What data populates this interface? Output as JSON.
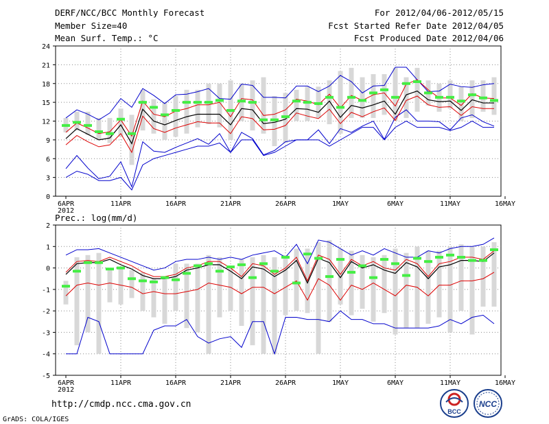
{
  "header": {
    "title_line1": "DERF/NCC/BCC Monthly Forecast",
    "title_line2": "Member Size=40",
    "title_line3": "Mean Surf. Temp.: °C",
    "right_line1": "For 2012/04/06-2012/05/15",
    "right_line2": "Fcst Started Refer Date 2012/04/05",
    "right_line3": "Fcst Produced Date 2012/04/06"
  },
  "footer": {
    "url": "http://cmdp.ncc.cma.gov.cn",
    "credit": "GrADS: COLA/IGES"
  },
  "logos": {
    "bcc": "BCC",
    "ncc": "NCC"
  },
  "colors": {
    "envelope": "#0000cc",
    "percentile": "#dd0000",
    "median": "#000000",
    "box": "#d8d8d8",
    "obs": "#44ee44",
    "grid": "#888888"
  },
  "chart_data": [
    {
      "type": "line",
      "title": "Mean Surf. Temp.: °C",
      "x_tick_labels": [
        "6APR",
        "11APR",
        "16APR",
        "21APR",
        "26APR",
        "1MAY",
        "6MAY",
        "11MAY",
        "16MAY"
      ],
      "x_year_label": "2012",
      "x_range_days": [
        0,
        39
      ],
      "ylim": [
        0,
        24
      ],
      "ytick_labels": [
        "0",
        "3",
        "6",
        "9",
        "12",
        "15",
        "18",
        "21",
        "24"
      ],
      "box_low": [
        10.2,
        10.5,
        9.8,
        9.0,
        8.5,
        9.5,
        5.0,
        10.5,
        10.0,
        9.0,
        9.5,
        10.0,
        11.0,
        11.5,
        11.0,
        9.0,
        12.0,
        10.5,
        10.0,
        8.0,
        8.5,
        12.0,
        12.0,
        12.5,
        11.5,
        10.0,
        12.5,
        12.5,
        12.5,
        13.0,
        12.0,
        12.5,
        13.5,
        14.5,
        13.5,
        14.0,
        12.0,
        12.5,
        13.5,
        13.0
      ],
      "box_high": [
        12.5,
        13.5,
        13.5,
        12.5,
        12.5,
        14.0,
        13.0,
        17.0,
        15.5,
        15.0,
        16.0,
        17.0,
        17.0,
        18.0,
        18.0,
        18.5,
        18.0,
        18.5,
        19.0,
        16.0,
        16.5,
        17.0,
        17.5,
        17.5,
        18.5,
        20.0,
        20.5,
        19.0,
        19.5,
        19.5,
        20.5,
        19.0,
        20.5,
        18.5,
        18.0,
        18.5,
        17.5,
        18.5,
        18.5,
        19.0
      ],
      "series": [
        {
          "name": "max",
          "values": [
            4.4,
            6.5,
            4.5,
            2.8,
            3.2,
            5.5,
            1.5,
            8.7,
            7.2,
            7.0,
            7.8,
            8.5,
            9.2,
            8.3,
            10.0,
            7.0,
            10.2,
            9.2,
            6.6,
            7.3,
            8.7,
            9.0,
            9.0,
            10.6,
            8.4,
            10.8,
            10.2,
            11.2,
            12.0,
            9.1,
            12.6,
            13.8,
            12.0,
            12.0,
            11.9,
            10.6,
            12.5,
            13.0,
            11.9,
            11.2
          ]
        },
        {
          "name": "p90",
          "values": [
            12.5,
            13.8,
            13.1,
            12.2,
            13.3,
            15.6,
            14.2,
            17.2,
            16.1,
            14.8,
            16.2,
            16.3,
            16.7,
            17.2,
            15.6,
            15.5,
            17.9,
            17.7,
            15.8,
            15.8,
            15.7,
            17.6,
            17.6,
            16.7,
            17.6,
            19.3,
            18.3,
            16.5,
            17.6,
            17.7,
            20.6,
            20.6,
            18.6,
            16.7,
            16.8,
            17.9,
            17.5,
            17.4,
            17.8,
            18.0
          ]
        },
        {
          "name": "p75",
          "values": [
            10.2,
            11.7,
            10.9,
            10.0,
            10.3,
            12.2,
            9.6,
            15.2,
            13.1,
            12.7,
            13.6,
            14.0,
            14.6,
            14.6,
            15.0,
            12.7,
            15.6,
            15.4,
            12.9,
            13.1,
            13.8,
            15.5,
            15.2,
            14.6,
            16.3,
            14.1,
            16.1,
            15.3,
            16.2,
            16.5,
            14.4,
            17.9,
            18.6,
            17.0,
            15.7,
            15.7,
            14.5,
            16.4,
            15.7,
            15.6
          ]
        },
        {
          "name": "median",
          "values": [
            9.2,
            10.8,
            9.9,
            9.0,
            9.3,
            11.4,
            8.4,
            13.9,
            12.0,
            11.4,
            12.1,
            12.7,
            13.1,
            13.1,
            13.1,
            11.4,
            14.0,
            13.8,
            11.6,
            11.8,
            12.3,
            14.0,
            13.9,
            13.4,
            15.2,
            12.6,
            14.5,
            14.1,
            14.6,
            15.2,
            13.1,
            16.2,
            16.8,
            15.4,
            15.1,
            15.2,
            13.7,
            15.4,
            14.9,
            14.9
          ]
        },
        {
          "name": "p25",
          "values": [
            8.2,
            9.7,
            8.7,
            7.9,
            8.2,
            10.0,
            7.0,
            12.8,
            10.8,
            10.2,
            10.9,
            11.4,
            11.9,
            11.7,
            11.7,
            10.0,
            12.7,
            12.4,
            10.6,
            10.7,
            11.3,
            13.3,
            12.8,
            12.4,
            13.9,
            11.6,
            13.4,
            12.7,
            13.5,
            14.1,
            12.1,
            15.3,
            16.0,
            14.6,
            14.2,
            14.3,
            12.9,
            14.3,
            14.0,
            14.0
          ]
        },
        {
          "name": "min",
          "values": [
            3.0,
            4.0,
            3.5,
            2.5,
            2.5,
            3.0,
            1.0,
            5.0,
            6.0,
            6.5,
            7.0,
            7.5,
            8.0,
            8.0,
            8.5,
            7.0,
            9.0,
            9.0,
            6.5,
            7.0,
            8.0,
            9.0,
            9.0,
            9.0,
            8.0,
            9.0,
            10.0,
            11.0,
            11.0,
            9.0,
            11.0,
            12.0,
            11.0,
            11.0,
            11.0,
            10.5,
            11.0,
            12.0,
            11.0,
            11.0
          ]
        },
        {
          "name": "obs",
          "values": [
            11.3,
            11.8,
            11.3,
            10.3,
            10.0,
            12.3,
            10.0,
            15.0,
            14.2,
            13.0,
            13.7,
            15.0,
            15.0,
            15.0,
            15.3,
            13.7,
            15.2,
            15.0,
            12.2,
            12.2,
            12.7,
            15.2,
            15.0,
            14.8,
            15.8,
            14.2,
            15.8,
            15.3,
            16.5,
            17.0,
            15.8,
            18.0,
            18.3,
            16.5,
            15.8,
            15.8,
            15.2,
            16.2,
            15.7,
            15.3
          ]
        }
      ]
    },
    {
      "type": "line",
      "title": "Prec.: log(mm/d)",
      "x_tick_labels": [
        "6APR",
        "11APR",
        "16APR",
        "21APR",
        "26APR",
        "1MAY",
        "6MAY",
        "11MAY",
        "16MAY"
      ],
      "x_year_label": "2012",
      "x_range_days": [
        0,
        39
      ],
      "ylim": [
        -5,
        2
      ],
      "ytick_labels": [
        "-5",
        "-4",
        "-3",
        "-2",
        "-1",
        "0",
        "1",
        "2"
      ],
      "box_low": [
        -1.7,
        -3.6,
        -3.0,
        -4.0,
        -1.6,
        -1.7,
        -1.4,
        -2.0,
        -2.3,
        -2.6,
        -2.0,
        -2.8,
        -3.0,
        -4.0,
        -2.3,
        -2.0,
        -2.7,
        -3.6,
        -4.0,
        -4.0,
        -2.2,
        -2.0,
        -2.1,
        -4.0,
        -2.5,
        -1.7,
        -2.2,
        -1.9,
        -2.5,
        -2.1,
        -3.1,
        -2.8,
        -2.8,
        -2.6,
        -2.3,
        -3.0,
        -2.0,
        -3.1,
        -1.8,
        -1.8
      ],
      "box_high": [
        -0.6,
        0.5,
        0.6,
        0.7,
        0.0,
        0.0,
        -0.1,
        -0.2,
        -0.5,
        -0.4,
        0.2,
        0.2,
        0.2,
        0.6,
        0.5,
        0.1,
        0.4,
        0.5,
        0.6,
        0.5,
        0.6,
        0.9,
        0.9,
        1.2,
        1.3,
        0.9,
        0.8,
        0.6,
        0.5,
        0.6,
        0.9,
        0.7,
        1.0,
        0.8,
        0.8,
        1.0,
        1.1,
        1.0,
        1.0,
        1.2
      ],
      "series": [
        {
          "name": "max",
          "values": [
            0.6,
            0.85,
            0.85,
            0.9,
            0.7,
            0.5,
            0.3,
            0.1,
            -0.1,
            0.0,
            0.3,
            0.4,
            0.4,
            0.5,
            0.4,
            0.5,
            0.4,
            0.6,
            0.7,
            0.8,
            0.5,
            1.1,
            0.2,
            1.3,
            1.2,
            0.9,
            0.6,
            0.8,
            0.6,
            0.9,
            0.7,
            0.5,
            0.5,
            0.8,
            0.7,
            0.9,
            1.0,
            1.0,
            1.1,
            1.4
          ]
        },
        {
          "name": "p75",
          "values": [
            -0.2,
            0.3,
            0.35,
            0.3,
            0.5,
            0.3,
            0.1,
            -0.2,
            -0.4,
            -0.4,
            -0.3,
            0.0,
            0.1,
            0.3,
            0.3,
            0.0,
            -0.4,
            0.2,
            0.1,
            -0.3,
            0.0,
            0.5,
            -0.6,
            0.6,
            0.4,
            -0.3,
            0.4,
            0.1,
            0.3,
            0.0,
            -0.1,
            0.4,
            0.2,
            -0.4,
            0.2,
            0.3,
            0.5,
            0.5,
            0.4,
            0.8
          ]
        },
        {
          "name": "median",
          "values": [
            -0.3,
            0.2,
            0.25,
            0.25,
            0.4,
            0.15,
            -0.05,
            -0.35,
            -0.5,
            -0.5,
            -0.4,
            -0.1,
            0.0,
            0.15,
            0.15,
            -0.15,
            -0.5,
            0.05,
            -0.05,
            -0.4,
            -0.1,
            0.35,
            -0.7,
            0.45,
            0.25,
            -0.45,
            0.3,
            0.0,
            0.15,
            -0.1,
            -0.25,
            0.25,
            0.05,
            -0.5,
            0.05,
            0.15,
            0.35,
            0.35,
            0.3,
            0.7
          ]
        },
        {
          "name": "p25",
          "values": [
            -1.3,
            -0.8,
            -0.7,
            -0.8,
            -0.7,
            -0.8,
            -0.9,
            -1.2,
            -1.1,
            -1.2,
            -1.2,
            -1.1,
            -1.0,
            -0.7,
            -0.8,
            -0.9,
            -1.2,
            -0.9,
            -0.9,
            -1.2,
            -0.9,
            -0.6,
            -1.5,
            -0.5,
            -0.8,
            -1.5,
            -0.8,
            -1.0,
            -0.7,
            -1.0,
            -1.3,
            -0.8,
            -0.9,
            -1.3,
            -0.8,
            -0.8,
            -0.6,
            -0.6,
            -0.5,
            -0.2
          ]
        },
        {
          "name": "min",
          "values": [
            -4.0,
            -4.0,
            -2.3,
            -2.5,
            -4.0,
            -4.0,
            -4.0,
            -4.0,
            -2.9,
            -2.7,
            -2.7,
            -2.4,
            -3.2,
            -3.5,
            -3.3,
            -3.2,
            -3.7,
            -2.5,
            -2.5,
            -4.0,
            -2.3,
            -2.3,
            -2.4,
            -2.4,
            -2.5,
            -2.0,
            -2.4,
            -2.4,
            -2.6,
            -2.6,
            -2.8,
            -2.8,
            -2.8,
            -2.8,
            -2.7,
            -2.4,
            -2.6,
            -2.3,
            -2.2,
            -2.6
          ]
        },
        {
          "name": "obs",
          "values": [
            -0.85,
            -0.15,
            0.25,
            0.25,
            -0.05,
            0.0,
            -0.5,
            -0.6,
            -0.65,
            -0.45,
            -0.55,
            -0.25,
            0.1,
            0.2,
            -0.15,
            0.05,
            0.15,
            -0.45,
            0.2,
            -0.15,
            0.5,
            -0.7,
            0.65,
            0.45,
            -0.4,
            0.4,
            -0.2,
            0.1,
            -0.45,
            0.4,
            0.2,
            -0.35,
            0.45,
            0.3,
            0.5,
            0.6,
            0.5,
            0.35,
            0.35,
            0.85
          ]
        }
      ]
    }
  ]
}
